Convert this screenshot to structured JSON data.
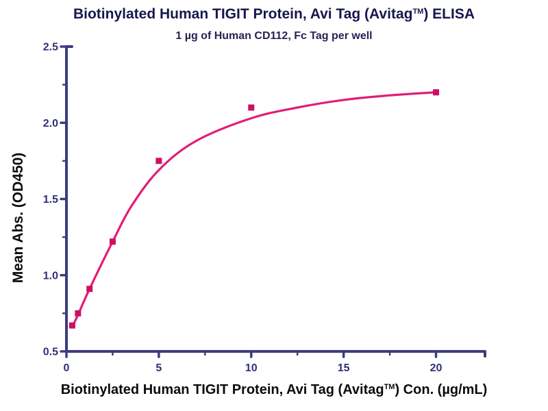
{
  "title": {
    "main": "Biotinylated Human TIGIT Protein, Avi Tag (Avitag",
    "sup": "TM",
    "end": ") ELISA"
  },
  "subtitle": "1 µg of Human CD112, Fc Tag per well",
  "x_axis_label": {
    "main": "Biotinylated Human TIGIT Protein, Avi Tag (Avitag",
    "sup": "TM",
    "end": ") Con. (µg/mL)"
  },
  "y_axis_label": "Mean Abs. (OD450)",
  "colors": {
    "background": "#ffffff",
    "title_text": "#17174e",
    "subtitle_text": "#242452",
    "axis_title_text": "#0b0b10",
    "axis_line": "#3c3c80",
    "tick_label": "#30307a",
    "curve_line": "#e11d78",
    "marker_fill": "#cd1062"
  },
  "chart_data": {
    "type": "scatter",
    "title": "Biotinylated Human TIGIT Protein, Avi Tag (Avitag™) ELISA",
    "subtitle": "1 µg of Human CD112, Fc Tag per well",
    "xlabel": "Biotinylated Human TIGIT Protein, Avi Tag (Avitag™) Con. (µg/mL)",
    "ylabel": "Mean Abs. (OD450)",
    "marker_shape": "square",
    "grid": false,
    "legend": "none",
    "xlim": [
      0,
      22.65
    ],
    "ylim": [
      0.5,
      2.5
    ],
    "x": [
      0.3125,
      0.625,
      1.25,
      2.5,
      5,
      10,
      20
    ],
    "y": [
      0.67,
      0.75,
      0.91,
      1.22,
      1.75,
      2.1,
      2.2
    ],
    "fit_curve": [
      [
        0.3125,
        0.66
      ],
      [
        0.625,
        0.74
      ],
      [
        1.25,
        0.91
      ],
      [
        2.5,
        1.22
      ],
      [
        3.5,
        1.45
      ],
      [
        5,
        1.69
      ],
      [
        7,
        1.88
      ],
      [
        10,
        2.03
      ],
      [
        12.5,
        2.1
      ],
      [
        15,
        2.15
      ],
      [
        17.5,
        2.18
      ],
      [
        20,
        2.2
      ]
    ],
    "x_ticks_major": [
      0,
      5,
      10,
      15,
      20
    ],
    "x_tick_labels": [
      "0",
      "5",
      "10",
      "15",
      "20"
    ],
    "x_ticks_minor": [
      2.5,
      7.5,
      12.5,
      17.5
    ],
    "y_ticks_major": [
      0.5,
      1.0,
      1.5,
      2.0,
      2.5
    ],
    "y_tick_labels": [
      "0.5",
      "1.0",
      "1.5",
      "2.0",
      "2.5"
    ],
    "y_ticks_minor": [
      0.75,
      1.25,
      1.75,
      2.25
    ]
  }
}
